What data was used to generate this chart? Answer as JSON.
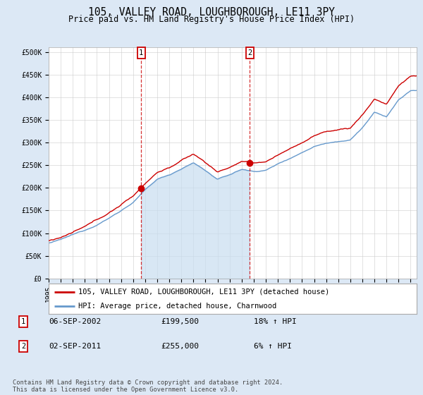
{
  "title": "105, VALLEY ROAD, LOUGHBOROUGH, LE11 3PY",
  "subtitle": "Price paid vs. HM Land Registry's House Price Index (HPI)",
  "ylabel_ticks": [
    "£0",
    "£50K",
    "£100K",
    "£150K",
    "£200K",
    "£250K",
    "£300K",
    "£350K",
    "£400K",
    "£450K",
    "£500K"
  ],
  "ytick_values": [
    0,
    50000,
    100000,
    150000,
    200000,
    250000,
    300000,
    350000,
    400000,
    450000,
    500000
  ],
  "ylim_top": 510000,
  "xlim_start": 1995.3,
  "xlim_end": 2025.5,
  "background_color": "#dce8f5",
  "plot_bg_color": "#ffffff",
  "hpi_line_color": "#6699cc",
  "hpi_fill_color": "#c8ddf0",
  "price_color": "#cc0000",
  "marker1_year": 2002.67,
  "marker1_price": 199500,
  "marker2_year": 2011.67,
  "marker2_price": 255000,
  "legend_label1": "105, VALLEY ROAD, LOUGHBOROUGH, LE11 3PY (detached house)",
  "legend_label2": "HPI: Average price, detached house, Charnwood",
  "table_row1": [
    "1",
    "06-SEP-2002",
    "£199,500",
    "18% ↑ HPI"
  ],
  "table_row2": [
    "2",
    "02-SEP-2011",
    "£255,000",
    "6% ↑ HPI"
  ],
  "footer": "Contains HM Land Registry data © Crown copyright and database right 2024.\nThis data is licensed under the Open Government Licence v3.0.",
  "title_fontsize": 10.5,
  "subtitle_fontsize": 8.5,
  "tick_fontsize": 7,
  "legend_fontsize": 7.5
}
